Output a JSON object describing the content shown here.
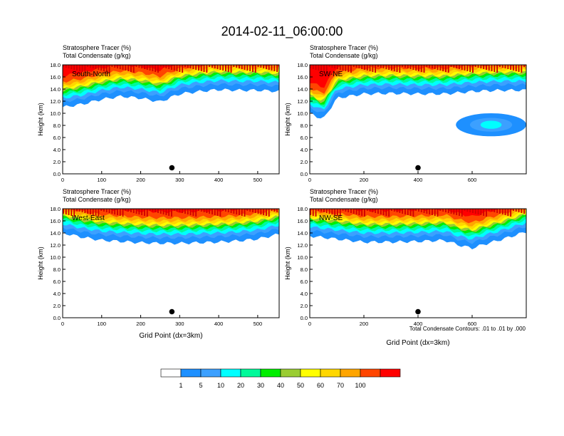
{
  "page_title": "2014-02-11_06:00:00",
  "footnote": "Total Condensate Contours: .01 to .01 by .000",
  "colorbar": {
    "colors": [
      "#ffffff",
      "#1e90ff",
      "#3ca0ff",
      "#00ffff",
      "#00fa9a",
      "#00ee00",
      "#9acd32",
      "#ffff00",
      "#ffd700",
      "#ffa500",
      "#ff4500",
      "#ff0000"
    ],
    "labels": [
      "1",
      "5",
      "10",
      "20",
      "30",
      "40",
      "50",
      "60",
      "70",
      "100"
    ]
  },
  "chart_data": [
    {
      "type": "heatmap",
      "panel_label": "South-North",
      "title_line1": "Stratosphere Tracer   (%)",
      "title_line2": "Total Condensate   (g/kg)",
      "ylabel": "Height (km)",
      "xlabel": "",
      "xlim": [
        0,
        555
      ],
      "ylim": [
        0,
        18
      ],
      "xticks": [
        "0",
        "100",
        "200",
        "300",
        "400",
        "500"
      ],
      "xtick_values": [
        0,
        100,
        200,
        300,
        400,
        500
      ],
      "yticks": [
        "0.0",
        "2.0",
        "4.0",
        "6.0",
        "8.0",
        "10.0",
        "12.0",
        "14.0",
        "16.0",
        "18.0"
      ],
      "marker_point": {
        "x": 280,
        "y": 1.0
      },
      "profile_x": [
        0,
        50,
        100,
        150,
        200,
        250,
        300,
        350,
        400,
        450,
        500,
        555
      ],
      "profile_bottom_km": [
        11.0,
        11.5,
        12.3,
        12.8,
        12.5,
        11.9,
        13.2,
        13.6,
        13.9,
        13.8,
        13.8,
        13.6
      ]
    },
    {
      "type": "heatmap",
      "panel_label": "SW-NE",
      "title_line1": "Stratosphere Tracer   (%)",
      "title_line2": "Total Condensate   (g/kg)",
      "ylabel": "Height (km)",
      "xlabel": "",
      "xlim": [
        0,
        800
      ],
      "ylim": [
        0,
        18
      ],
      "xticks": [
        "0",
        "200",
        "400",
        "600"
      ],
      "xtick_values": [
        0,
        200,
        400,
        600
      ],
      "yticks": [
        "0.0",
        "2.0",
        "4.0",
        "6.0",
        "8.0",
        "10.0",
        "12.0",
        "14.0",
        "16.0",
        "18.0"
      ],
      "marker_point": {
        "x": 400,
        "y": 1.0
      },
      "profile_x": [
        0,
        50,
        100,
        200,
        300,
        400,
        500,
        600,
        700,
        800
      ],
      "profile_bottom_km": [
        10.0,
        9.0,
        12.5,
        13.2,
        13.3,
        13.2,
        13.2,
        13.6,
        13.8,
        13.8
      ],
      "secondary_blob": {
        "x_from": 540,
        "x_to": 800,
        "y_from": 6.2,
        "y_to": 10.0
      }
    },
    {
      "type": "heatmap",
      "panel_label": "West-East",
      "title_line1": "Stratosphere Tracer   (%)",
      "title_line2": "Total Condensate   (g/kg)",
      "ylabel": "Height (km)",
      "xlabel": "Grid Point (dx=3km)",
      "xlim": [
        0,
        555
      ],
      "ylim": [
        0,
        18
      ],
      "xticks": [
        "0",
        "100",
        "200",
        "300",
        "400",
        "500"
      ],
      "xtick_values": [
        0,
        100,
        200,
        300,
        400,
        500
      ],
      "yticks": [
        "0.0",
        "2.0",
        "4.0",
        "6.0",
        "8.0",
        "10.0",
        "12.0",
        "14.0",
        "16.0",
        "18.0"
      ],
      "marker_point": {
        "x": 280,
        "y": 1.0
      },
      "profile_x": [
        0,
        50,
        100,
        150,
        200,
        250,
        300,
        350,
        400,
        450,
        500,
        555
      ],
      "profile_bottom_km": [
        14.0,
        13.3,
        12.8,
        12.6,
        12.4,
        12.3,
        12.3,
        12.4,
        12.5,
        12.7,
        13.0,
        13.8
      ]
    },
    {
      "type": "heatmap",
      "panel_label": "NW-SE",
      "title_line1": "Stratosphere Tracer   (%)",
      "title_line2": "Total Condensate   (g/kg)",
      "ylabel": "Height (km)",
      "xlabel": "Grid Point (dx=3km)",
      "xlim": [
        0,
        800
      ],
      "ylim": [
        0,
        18
      ],
      "xticks": [
        "0",
        "200",
        "400",
        "600"
      ],
      "xtick_values": [
        0,
        200,
        400,
        600
      ],
      "yticks": [
        "0.0",
        "2.0",
        "4.0",
        "6.0",
        "8.0",
        "10.0",
        "12.0",
        "14.0",
        "16.0",
        "18.0"
      ],
      "marker_point": {
        "x": 400,
        "y": 1.0
      },
      "profile_x": [
        0,
        100,
        200,
        300,
        400,
        500,
        550,
        600,
        650,
        700,
        800
      ],
      "profile_bottom_km": [
        13.5,
        13.0,
        12.5,
        12.5,
        12.6,
        12.8,
        12.0,
        11.5,
        12.2,
        12.8,
        14.2
      ]
    }
  ]
}
